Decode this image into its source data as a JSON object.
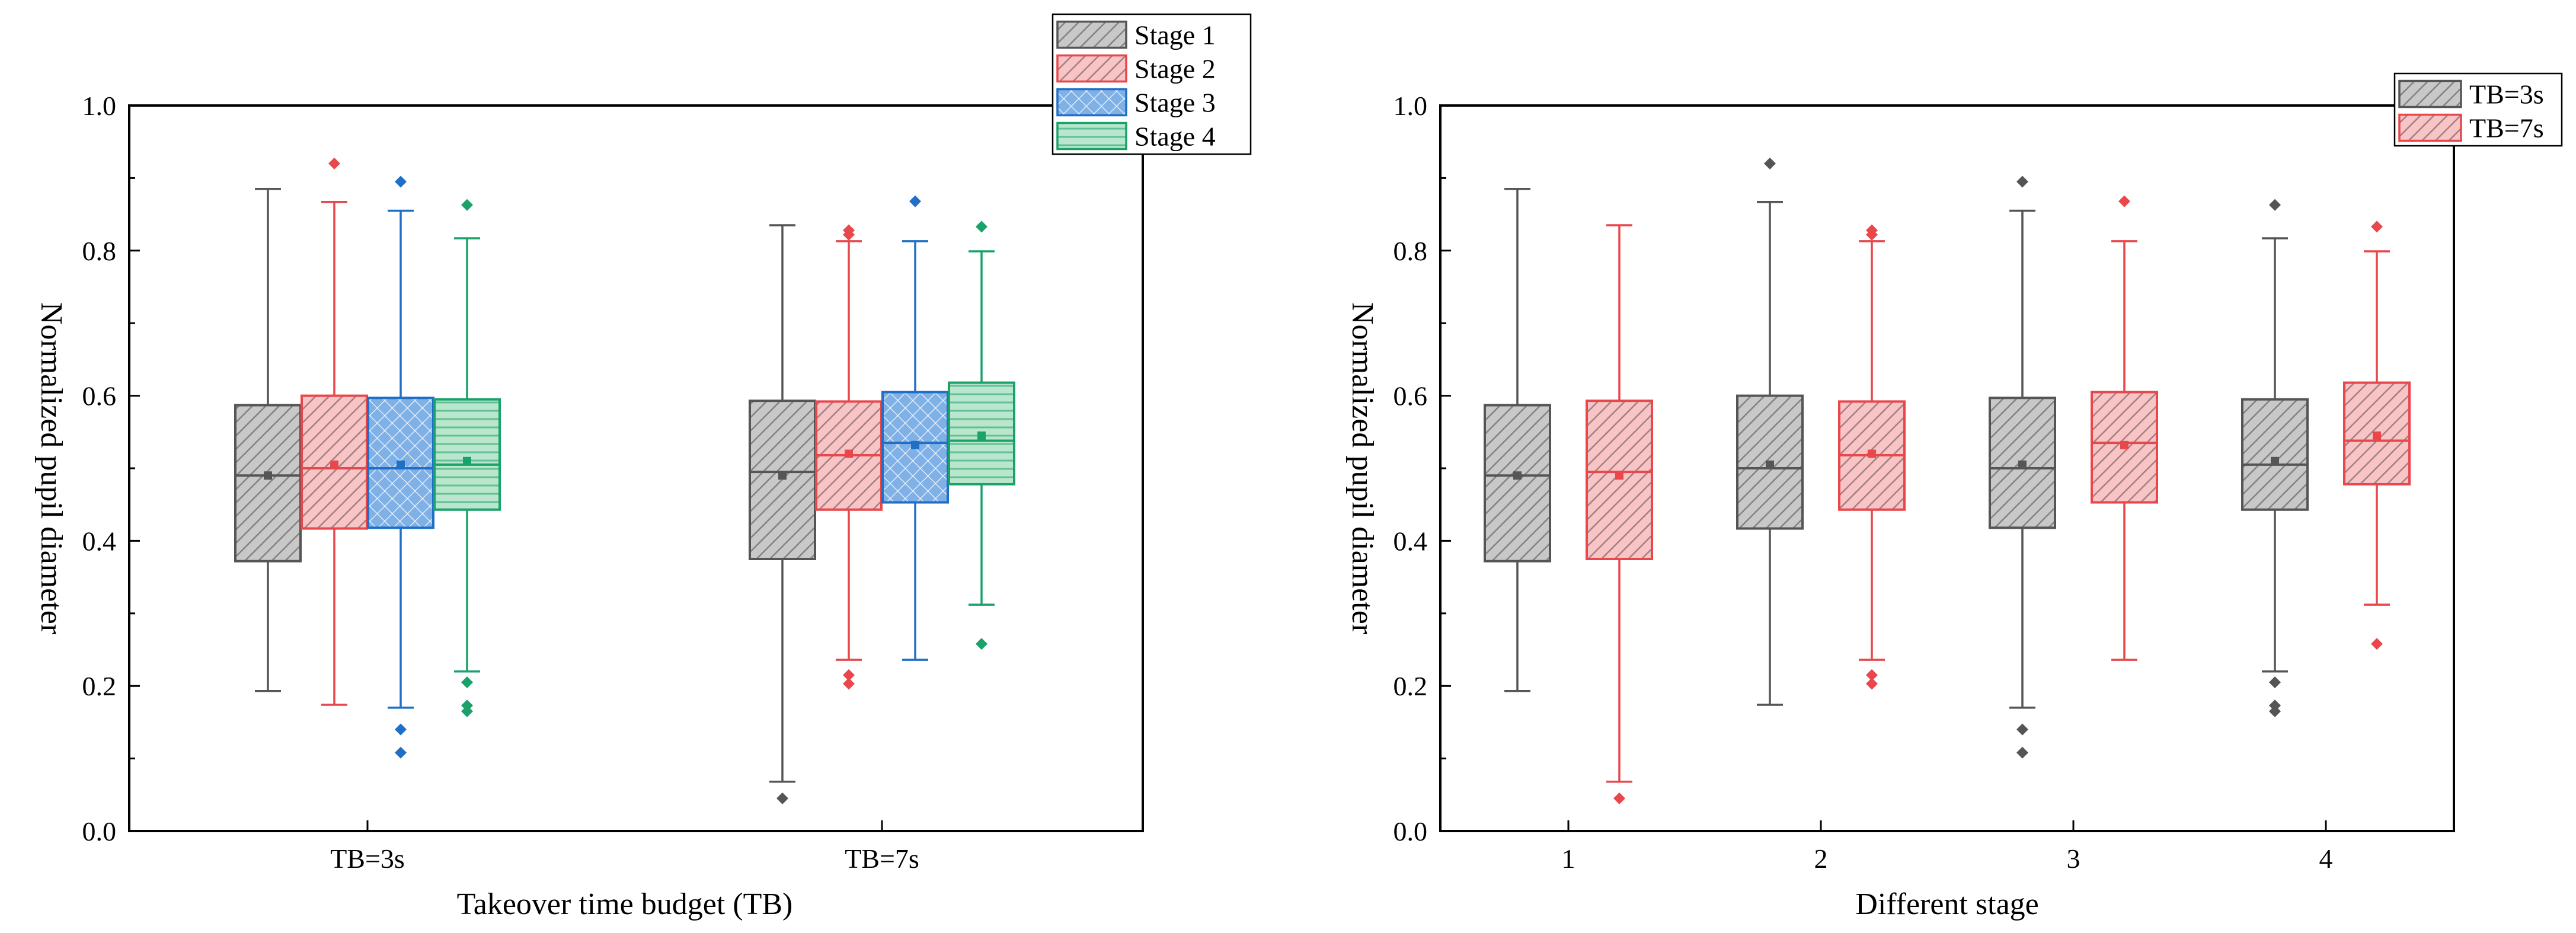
{
  "chart_data": [
    {
      "type": "box",
      "id": "left",
      "xlabel": "Takeover time budget (TB)",
      "ylabel": "Normalized pupil diameter",
      "ylim": [
        0,
        1.0
      ],
      "yticks": [
        "0.0",
        "0.2",
        "0.4",
        "0.6",
        "0.8",
        "1.0"
      ],
      "categories": [
        "TB=3s",
        "TB=7s"
      ],
      "legend_position": "top-right",
      "series": [
        {
          "name": "Stage 1",
          "color": "#555555",
          "fill": "#c8c8c8",
          "pattern": "hatch",
          "boxes": [
            {
              "q1": 0.372,
              "median": 0.49,
              "q3": 0.587,
              "mean": 0.49,
              "whisker_low": 0.193,
              "whisker_high": 0.885,
              "outliers": []
            },
            {
              "q1": 0.375,
              "median": 0.495,
              "q3": 0.593,
              "mean": 0.49,
              "whisker_low": 0.068,
              "whisker_high": 0.835,
              "outliers": [
                0.045
              ]
            }
          ]
        },
        {
          "name": "Stage 2",
          "color": "#e8474c",
          "fill": "#f8c4c6",
          "pattern": "hatch",
          "boxes": [
            {
              "q1": 0.417,
              "median": 0.5,
              "q3": 0.6,
              "mean": 0.505,
              "whisker_low": 0.174,
              "whisker_high": 0.867,
              "outliers": [
                0.92
              ]
            },
            {
              "q1": 0.443,
              "median": 0.518,
              "q3": 0.592,
              "mean": 0.52,
              "whisker_low": 0.236,
              "whisker_high": 0.813,
              "outliers": [
                0.828,
                0.822,
                0.215,
                0.203
              ]
            }
          ]
        },
        {
          "name": "Stage 3",
          "color": "#1f6fc7",
          "fill": "#7fb0e6",
          "pattern": "cross",
          "boxes": [
            {
              "q1": 0.418,
              "median": 0.5,
              "q3": 0.597,
              "mean": 0.505,
              "whisker_low": 0.17,
              "whisker_high": 0.855,
              "outliers": [
                0.895,
                0.14,
                0.108
              ]
            },
            {
              "q1": 0.453,
              "median": 0.535,
              "q3": 0.605,
              "mean": 0.532,
              "whisker_low": 0.236,
              "whisker_high": 0.813,
              "outliers": [
                0.868
              ]
            }
          ]
        },
        {
          "name": "Stage 4",
          "color": "#1aa26a",
          "fill": "#b9e6cc",
          "pattern": "horizontal",
          "boxes": [
            {
              "q1": 0.443,
              "median": 0.505,
              "q3": 0.595,
              "mean": 0.51,
              "whisker_low": 0.22,
              "whisker_high": 0.817,
              "outliers": [
                0.863,
                0.205,
                0.173,
                0.165
              ]
            },
            {
              "q1": 0.478,
              "median": 0.538,
              "q3": 0.618,
              "mean": 0.545,
              "whisker_low": 0.312,
              "whisker_high": 0.799,
              "outliers": [
                0.833,
                0.258
              ]
            }
          ]
        }
      ]
    },
    {
      "type": "box",
      "id": "right",
      "xlabel": "Different stage",
      "ylabel": "Normalized pupil diameter",
      "ylim": [
        0,
        1.0
      ],
      "yticks": [
        "0.0",
        "0.2",
        "0.4",
        "0.6",
        "0.8",
        "1.0"
      ],
      "categories": [
        "1",
        "2",
        "3",
        "4"
      ],
      "legend_position": "top-right",
      "series": [
        {
          "name": "TB=3s",
          "color": "#555555",
          "fill": "#c8c8c8",
          "pattern": "hatch",
          "boxes": [
            {
              "q1": 0.372,
              "median": 0.49,
              "q3": 0.587,
              "mean": 0.49,
              "whisker_low": 0.193,
              "whisker_high": 0.885,
              "outliers": []
            },
            {
              "q1": 0.417,
              "median": 0.5,
              "q3": 0.6,
              "mean": 0.505,
              "whisker_low": 0.174,
              "whisker_high": 0.867,
              "outliers": [
                0.92
              ]
            },
            {
              "q1": 0.418,
              "median": 0.5,
              "q3": 0.597,
              "mean": 0.505,
              "whisker_low": 0.17,
              "whisker_high": 0.855,
              "outliers": [
                0.895,
                0.14,
                0.108
              ]
            },
            {
              "q1": 0.443,
              "median": 0.505,
              "q3": 0.595,
              "mean": 0.51,
              "whisker_low": 0.22,
              "whisker_high": 0.817,
              "outliers": [
                0.863,
                0.205,
                0.173,
                0.165
              ]
            }
          ]
        },
        {
          "name": "TB=7s",
          "color": "#e8474c",
          "fill": "#f8c4c6",
          "pattern": "hatch",
          "boxes": [
            {
              "q1": 0.375,
              "median": 0.495,
              "q3": 0.593,
              "mean": 0.49,
              "whisker_low": 0.068,
              "whisker_high": 0.835,
              "outliers": [
                0.045
              ]
            },
            {
              "q1": 0.443,
              "median": 0.518,
              "q3": 0.592,
              "mean": 0.52,
              "whisker_low": 0.236,
              "whisker_high": 0.813,
              "outliers": [
                0.828,
                0.822,
                0.215,
                0.203
              ]
            },
            {
              "q1": 0.453,
              "median": 0.535,
              "q3": 0.605,
              "mean": 0.532,
              "whisker_low": 0.236,
              "whisker_high": 0.813,
              "outliers": [
                0.868
              ]
            },
            {
              "q1": 0.478,
              "median": 0.538,
              "q3": 0.618,
              "mean": 0.545,
              "whisker_low": 0.312,
              "whisker_high": 0.799,
              "outliers": [
                0.833,
                0.258
              ]
            }
          ]
        }
      ]
    }
  ]
}
